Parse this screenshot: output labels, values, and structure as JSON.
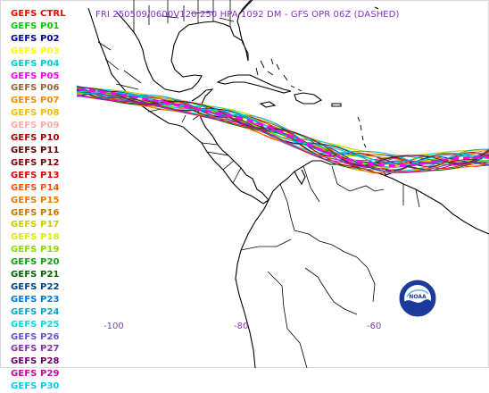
{
  "title": "FRI 250509/0600V120  250 HPA 1092 DM - GFS OPR 06Z (DASHED)",
  "members": [
    {
      "label": "GEFS CTRL",
      "color": "#ff0000"
    },
    {
      "label": "GEFS P01",
      "color": "#00cc00"
    },
    {
      "label": "GEFS P02",
      "color": "#000099"
    },
    {
      "label": "GEFS P03",
      "color": "#ffff00"
    },
    {
      "label": "GEFS P04",
      "color": "#00cccc"
    },
    {
      "label": "GEFS P05",
      "color": "#ff00ff"
    },
    {
      "label": "GEFS P06",
      "color": "#996633"
    },
    {
      "label": "GEFS P07",
      "color": "#ff8800"
    },
    {
      "label": "GEFS P08",
      "color": "#ffbb00"
    },
    {
      "label": "GEFS P09",
      "color": "#ffaaaa"
    },
    {
      "label": "GEFS P10",
      "color": "#aa0000"
    },
    {
      "label": "GEFS P11",
      "color": "#660000"
    },
    {
      "label": "GEFS P12",
      "color": "#880000"
    },
    {
      "label": "GEFS P13",
      "color": "#dd0000"
    },
    {
      "label": "GEFS P14",
      "color": "#ff5500"
    },
    {
      "label": "GEFS P15",
      "color": "#ee7700"
    },
    {
      "label": "GEFS P16",
      "color": "#cc7700"
    },
    {
      "label": "GEFS P17",
      "color": "#cccc00"
    },
    {
      "label": "GEFS P18",
      "color": "#ddee00"
    },
    {
      "label": "GEFS P19",
      "color": "#88dd00"
    },
    {
      "label": "GEFS P20",
      "color": "#00aa00"
    },
    {
      "label": "GEFS P21",
      "color": "#006600"
    },
    {
      "label": "GEFS P22",
      "color": "#004488"
    },
    {
      "label": "GEFS P23",
      "color": "#0077dd"
    },
    {
      "label": "GEFS P24",
      "color": "#00aacc"
    },
    {
      "label": "GEFS P25",
      "color": "#00dddd"
    },
    {
      "label": "GEFS P26",
      "color": "#6655cc"
    },
    {
      "label": "GEFS P27",
      "color": "#8833aa"
    },
    {
      "label": "GEFS P28",
      "color": "#660066"
    },
    {
      "label": "GEFS P29",
      "color": "#cc00aa"
    },
    {
      "label": "GEFS P30",
      "color": "#00ccee"
    }
  ],
  "operational_color": "#ff00ff",
  "longitude_ticks": [
    "-100",
    "-80",
    "-60"
  ],
  "logo": {
    "name": "noaa-logo",
    "text": "NOAA"
  }
}
